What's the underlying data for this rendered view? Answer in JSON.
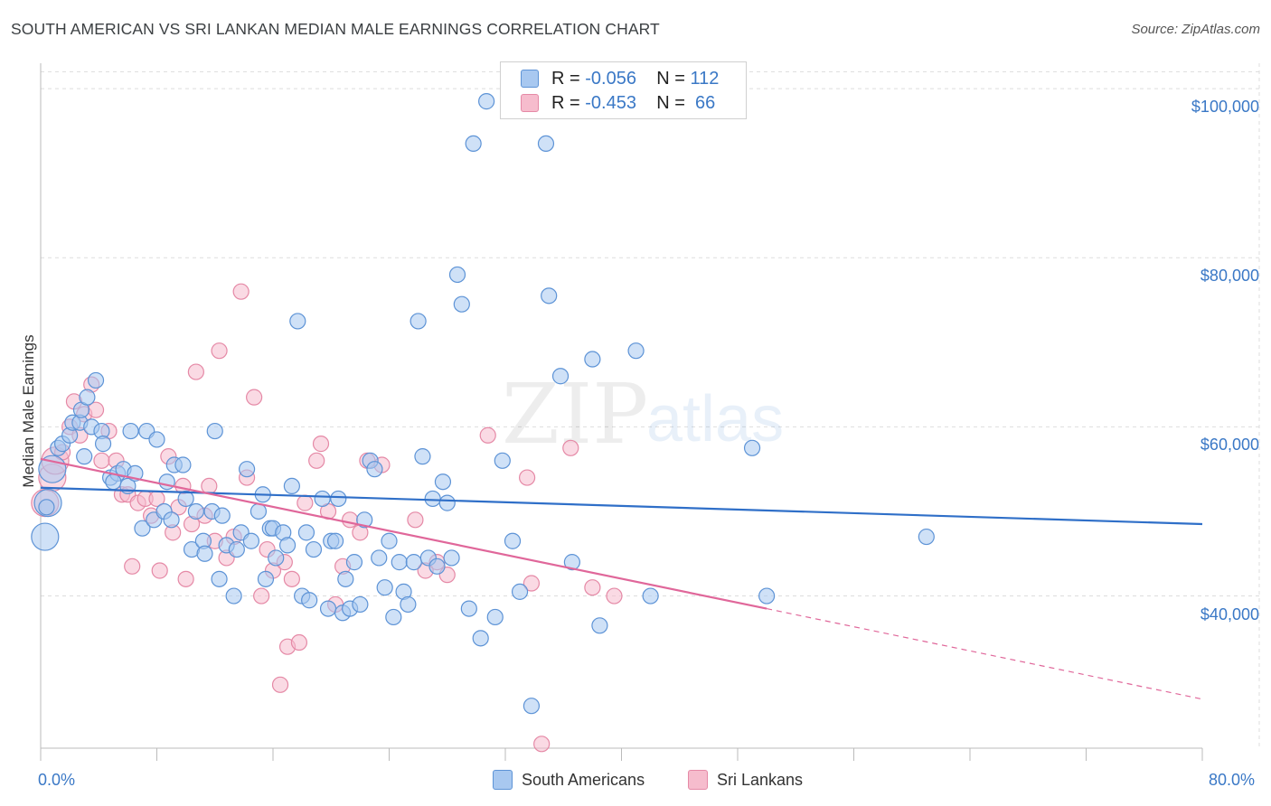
{
  "title": "SOUTH AMERICAN VS SRI LANKAN MEDIAN MALE EARNINGS CORRELATION CHART",
  "source": "Source: ZipAtlas.com",
  "watermark": {
    "zip": "ZIP",
    "atlas": "atlas"
  },
  "legend": {
    "rows": [
      {
        "r_label": "R =",
        "r_value": "-0.056",
        "n_label": "N =",
        "n_value": "112"
      },
      {
        "r_label": "R =",
        "r_value": "-0.453",
        "n_label": "N =",
        "n_value": " 66"
      }
    ]
  },
  "colors": {
    "blue_fill": "#a8c8f0",
    "blue_stroke": "#5d93d6",
    "blue_line": "#2f6fc8",
    "pink_fill": "#f6bccd",
    "pink_stroke": "#e589a6",
    "pink_line": "#e0679a",
    "grid": "#dddddd",
    "axis_text": "#3a78c6"
  },
  "chart_data": {
    "type": "scatter",
    "xlabel": "",
    "ylabel": "Median Male Earnings",
    "xlim": [
      0,
      80
    ],
    "ylim": [
      22000,
      103000
    ],
    "x_tick_labels": [
      "0.0%",
      "80.0%"
    ],
    "y_ticks": [
      40000,
      60000,
      80000,
      100000
    ],
    "y_tick_labels": [
      "$40,000",
      "$60,000",
      "$80,000",
      "$100,000"
    ],
    "grid": true,
    "legend_position": "bottom-center",
    "series": [
      {
        "name": "South Americans",
        "color": "#5d93d6",
        "trend": {
          "x": [
            0,
            80
          ],
          "y": [
            52800,
            48500
          ],
          "style": "solid"
        },
        "points": [
          [
            0.3,
            47000
          ],
          [
            0.5,
            51000
          ],
          [
            0.8,
            55000
          ],
          [
            1.2,
            57500
          ],
          [
            1.5,
            58000
          ],
          [
            2.0,
            59000
          ],
          [
            2.2,
            60500
          ],
          [
            2.7,
            60500
          ],
          [
            2.8,
            62000
          ],
          [
            3.2,
            63500
          ],
          [
            3.8,
            65500
          ],
          [
            3.5,
            60000
          ],
          [
            4.2,
            59500
          ],
          [
            4.3,
            58000
          ],
          [
            4.8,
            54000
          ],
          [
            5.3,
            54500
          ],
          [
            5.7,
            55000
          ],
          [
            6.0,
            53000
          ],
          [
            6.5,
            54500
          ],
          [
            6.2,
            59500
          ],
          [
            7.0,
            48000
          ],
          [
            7.3,
            59500
          ],
          [
            7.8,
            49000
          ],
          [
            8.0,
            58500
          ],
          [
            8.5,
            50000
          ],
          [
            8.7,
            53500
          ],
          [
            9.0,
            49000
          ],
          [
            9.2,
            55500
          ],
          [
            9.8,
            55500
          ],
          [
            10.0,
            51500
          ],
          [
            10.4,
            45500
          ],
          [
            10.7,
            50000
          ],
          [
            11.2,
            46500
          ],
          [
            11.3,
            45000
          ],
          [
            11.8,
            50000
          ],
          [
            12.0,
            59500
          ],
          [
            12.3,
            42000
          ],
          [
            12.5,
            49500
          ],
          [
            12.8,
            46000
          ],
          [
            13.3,
            40000
          ],
          [
            13.5,
            45500
          ],
          [
            13.8,
            47500
          ],
          [
            14.2,
            55000
          ],
          [
            14.5,
            46500
          ],
          [
            15.0,
            50000
          ],
          [
            15.3,
            52000
          ],
          [
            15.5,
            42000
          ],
          [
            15.8,
            48000
          ],
          [
            16.0,
            48000
          ],
          [
            16.2,
            44500
          ],
          [
            16.7,
            47500
          ],
          [
            17.0,
            46000
          ],
          [
            17.3,
            53000
          ],
          [
            17.7,
            72500
          ],
          [
            18.0,
            40000
          ],
          [
            18.3,
            47500
          ],
          [
            18.5,
            39500
          ],
          [
            18.8,
            45500
          ],
          [
            19.4,
            51500
          ],
          [
            19.8,
            38500
          ],
          [
            20.0,
            46500
          ],
          [
            20.3,
            46500
          ],
          [
            20.5,
            51500
          ],
          [
            20.8,
            38000
          ],
          [
            21.0,
            42000
          ],
          [
            21.3,
            38500
          ],
          [
            21.6,
            44000
          ],
          [
            22.0,
            39000
          ],
          [
            22.3,
            49000
          ],
          [
            22.7,
            56000
          ],
          [
            23.0,
            55000
          ],
          [
            23.3,
            44500
          ],
          [
            23.7,
            41000
          ],
          [
            24.0,
            46500
          ],
          [
            24.3,
            37500
          ],
          [
            24.7,
            44000
          ],
          [
            25.0,
            40500
          ],
          [
            25.3,
            39000
          ],
          [
            25.7,
            44000
          ],
          [
            26.0,
            72500
          ],
          [
            26.3,
            56500
          ],
          [
            26.7,
            44500
          ],
          [
            27.0,
            51500
          ],
          [
            27.3,
            43500
          ],
          [
            27.7,
            53500
          ],
          [
            28.0,
            51000
          ],
          [
            28.3,
            44500
          ],
          [
            28.7,
            78000
          ],
          [
            29.0,
            74500
          ],
          [
            29.5,
            38500
          ],
          [
            29.8,
            93500
          ],
          [
            30.3,
            35000
          ],
          [
            30.7,
            98500
          ],
          [
            31.3,
            37500
          ],
          [
            31.8,
            56000
          ],
          [
            32.5,
            46500
          ],
          [
            33.0,
            40500
          ],
          [
            33.8,
            27000
          ],
          [
            34.8,
            93500
          ],
          [
            35.0,
            75500
          ],
          [
            35.8,
            66000
          ],
          [
            36.6,
            44000
          ],
          [
            38.0,
            68000
          ],
          [
            38.5,
            36500
          ],
          [
            41.0,
            69000
          ],
          [
            42.0,
            40000
          ],
          [
            49.0,
            57500
          ],
          [
            50.0,
            40000
          ],
          [
            61.0,
            47000
          ],
          [
            0.4,
            50500
          ],
          [
            3.0,
            56500
          ],
          [
            5.0,
            53500
          ]
        ]
      },
      {
        "name": "Sri Lankans",
        "color": "#e589a6",
        "trend": {
          "x": [
            0,
            50
          ],
          "y": [
            56200,
            38500
          ],
          "x_dashed_to": 80,
          "y_dashed_to": 27800
        },
        "points": [
          [
            0.3,
            51000
          ],
          [
            0.8,
            54000
          ],
          [
            1.0,
            56000
          ],
          [
            1.5,
            57000
          ],
          [
            2.0,
            60000
          ],
          [
            2.3,
            63000
          ],
          [
            2.7,
            59000
          ],
          [
            3.0,
            61500
          ],
          [
            3.5,
            65000
          ],
          [
            3.8,
            62000
          ],
          [
            4.2,
            56000
          ],
          [
            4.7,
            59500
          ],
          [
            5.2,
            56000
          ],
          [
            5.6,
            52000
          ],
          [
            6.0,
            52000
          ],
          [
            6.3,
            43500
          ],
          [
            6.7,
            51000
          ],
          [
            7.2,
            51500
          ],
          [
            7.6,
            49500
          ],
          [
            8.0,
            51500
          ],
          [
            8.2,
            43000
          ],
          [
            8.8,
            56500
          ],
          [
            9.1,
            47500
          ],
          [
            9.5,
            50500
          ],
          [
            9.8,
            53000
          ],
          [
            10.0,
            42000
          ],
          [
            10.4,
            48500
          ],
          [
            10.7,
            66500
          ],
          [
            11.3,
            49500
          ],
          [
            11.6,
            53000
          ],
          [
            12.0,
            46500
          ],
          [
            12.3,
            69000
          ],
          [
            12.8,
            44500
          ],
          [
            13.3,
            47000
          ],
          [
            13.8,
            76000
          ],
          [
            14.2,
            54000
          ],
          [
            14.7,
            63500
          ],
          [
            15.2,
            40000
          ],
          [
            15.6,
            45500
          ],
          [
            16.0,
            43000
          ],
          [
            16.5,
            29500
          ],
          [
            16.8,
            44000
          ],
          [
            17.0,
            34000
          ],
          [
            17.3,
            42000
          ],
          [
            17.8,
            34500
          ],
          [
            18.2,
            51000
          ],
          [
            19.0,
            56000
          ],
          [
            19.3,
            58000
          ],
          [
            19.8,
            50000
          ],
          [
            20.3,
            39000
          ],
          [
            20.8,
            43500
          ],
          [
            21.3,
            49000
          ],
          [
            22.0,
            47500
          ],
          [
            22.5,
            56000
          ],
          [
            23.5,
            55500
          ],
          [
            25.8,
            49000
          ],
          [
            26.5,
            43000
          ],
          [
            27.3,
            44000
          ],
          [
            28.0,
            42500
          ],
          [
            30.8,
            59000
          ],
          [
            33.5,
            54000
          ],
          [
            33.8,
            41500
          ],
          [
            34.5,
            22500
          ],
          [
            36.5,
            57500
          ],
          [
            38.0,
            41000
          ],
          [
            39.5,
            40000
          ]
        ]
      }
    ]
  }
}
